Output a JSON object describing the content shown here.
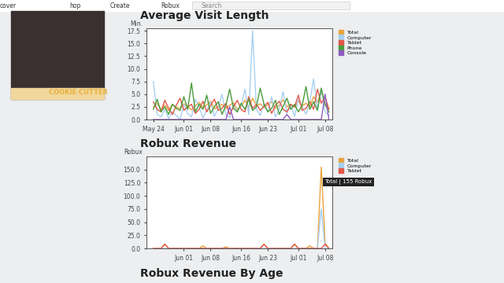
{
  "header": {
    "nav": [
      "cover",
      "hop",
      "Create",
      "Robux"
    ],
    "search": "Search"
  },
  "overlay": {
    "logo": "COOKIE CUTTER"
  },
  "section_title": "Robux Revenue By Age",
  "chart_data": [
    {
      "type": "line",
      "title": "Average Visit Length",
      "y_label": "Min.",
      "categories": [
        "May 24",
        null,
        null,
        null,
        null,
        null,
        null,
        null,
        "Jun 01",
        null,
        null,
        null,
        null,
        null,
        null,
        "Jun 08",
        null,
        null,
        null,
        null,
        null,
        null,
        null,
        "Jun 16",
        null,
        null,
        null,
        null,
        null,
        null,
        "Jun 23",
        null,
        null,
        null,
        null,
        null,
        null,
        null,
        "Jul 01",
        null,
        null,
        null,
        null,
        null,
        null,
        "Jul 08",
        null
      ],
      "series": [
        {
          "name": "Total",
          "color": "#e8a33d",
          "values": [
            2.5,
            3.2,
            2.0,
            2.8,
            1.8,
            3.0,
            2.4,
            2.2,
            3.1,
            2.6,
            1.9,
            2.7,
            3.4,
            2.3,
            2.9,
            3.6,
            2.1,
            2.5,
            3.0,
            2.2,
            2.8,
            3.3,
            2.0,
            2.6,
            3.8,
            2.4,
            4.2,
            2.7,
            3.1,
            2.3,
            2.9,
            3.5,
            2.2,
            2.8,
            3.9,
            2.5,
            3.0,
            2.4,
            3.6,
            2.7,
            3.2,
            2.6,
            4.5,
            3.4,
            5.5,
            3.0,
            2.2
          ]
        },
        {
          "name": "Computer",
          "color": "#a8d0f0",
          "values": [
            7.5,
            1.0,
            0.5,
            2.0,
            0.2,
            1.5,
            0.8,
            0.0,
            3.0,
            1.2,
            0.5,
            4.0,
            2.5,
            0.3,
            1.8,
            3.5,
            0.6,
            2.2,
            5.0,
            1.0,
            0.4,
            3.0,
            1.5,
            2.8,
            6.0,
            1.0,
            17.5,
            2.0,
            0.8,
            3.2,
            1.5,
            4.5,
            0.5,
            2.0,
            5.5,
            1.2,
            3.0,
            0.6,
            4.0,
            2.5,
            1.0,
            3.5,
            8.0,
            2.0,
            6.0,
            1.5,
            0.8
          ]
        },
        {
          "name": "Tablet",
          "color": "#e0584a",
          "values": [
            3.5,
            2.0,
            1.5,
            3.8,
            2.2,
            1.0,
            2.8,
            4.2,
            1.8,
            2.5,
            3.0,
            1.2,
            2.0,
            3.6,
            1.5,
            2.8,
            4.0,
            1.8,
            2.2,
            3.2,
            1.0,
            2.5,
            3.8,
            2.0,
            1.5,
            4.5,
            2.2,
            3.0,
            1.8,
            2.6,
            3.4,
            1.2,
            2.8,
            3.6,
            2.0,
            1.5,
            3.0,
            2.5,
            4.8,
            1.8,
            2.2,
            3.5,
            2.0,
            6.0,
            3.2,
            4.5,
            2.0
          ]
        },
        {
          "name": "Phone",
          "color": "#4a9c3c",
          "values": [
            2.0,
            4.0,
            1.5,
            2.5,
            1.0,
            3.0,
            2.2,
            1.8,
            4.5,
            2.0,
            7.2,
            1.5,
            3.0,
            2.0,
            4.8,
            1.2,
            2.5,
            3.5,
            1.0,
            2.8,
            6.0,
            2.2,
            1.5,
            3.2,
            2.0,
            4.0,
            1.8,
            2.5,
            6.2,
            3.0,
            1.5,
            2.2,
            3.8,
            1.0,
            2.6,
            4.2,
            2.0,
            3.0,
            1.5,
            2.8,
            6.5,
            2.0,
            3.5,
            1.8,
            6.2,
            3.0,
            1.5
          ]
        },
        {
          "name": "Console",
          "color": "#8e5bbf",
          "values": [
            0,
            0,
            0,
            0,
            0,
            0,
            0,
            0,
            0,
            0,
            0,
            0,
            0,
            0,
            0,
            0,
            0,
            0,
            0,
            0,
            2.5,
            0,
            0,
            0,
            0,
            0,
            0,
            0,
            0,
            0,
            0,
            0,
            0,
            0,
            0,
            1.0,
            0,
            0,
            0,
            0,
            0,
            0,
            0,
            0,
            0,
            5.0,
            0
          ]
        }
      ],
      "ylim": [
        0,
        18
      ],
      "yticks": [
        {
          "value": 0,
          "label": "0.0"
        },
        2.5,
        {
          "value": 5,
          "label": "5.0"
        },
        7.5,
        {
          "value": 10,
          "label": "10.0"
        },
        12.5,
        {
          "value": 15,
          "label": "15.0"
        },
        17.5
      ],
      "legend": "upper left",
      "grid": false
    },
    {
      "type": "line",
      "title": "Robux Revenue",
      "y_label": "Robux",
      "categories": [
        null,
        null,
        null,
        null,
        null,
        null,
        null,
        null,
        "Jun 01",
        null,
        null,
        null,
        null,
        null,
        null,
        "Jun 08",
        null,
        null,
        null,
        null,
        null,
        null,
        null,
        "Jun 16",
        null,
        null,
        null,
        null,
        null,
        null,
        "Jun 23",
        null,
        null,
        null,
        null,
        null,
        null,
        null,
        "Jul 01",
        null,
        null,
        null,
        null,
        null,
        null,
        "Jul 08",
        null
      ],
      "series": [
        {
          "name": "Total",
          "color": "#e8a33d",
          "values": [
            0,
            0,
            0,
            8,
            0,
            0,
            0,
            0,
            0,
            0,
            0,
            0,
            0,
            5,
            0,
            0,
            0,
            0,
            0,
            3,
            0,
            0,
            0,
            0,
            0,
            0,
            0,
            0,
            0,
            8,
            0,
            0,
            0,
            0,
            0,
            0,
            0,
            8,
            0,
            0,
            0,
            5,
            0,
            0,
            155,
            10,
            0
          ]
        },
        {
          "name": "Computer",
          "color": "#a8d0f0",
          "values": [
            0,
            0,
            0,
            0,
            0,
            0,
            0,
            0,
            0,
            0,
            0,
            0,
            0,
            0,
            0,
            0,
            0,
            0,
            0,
            0,
            0,
            0,
            0,
            0,
            0,
            0,
            0,
            0,
            0,
            0,
            0,
            0,
            0,
            0,
            0,
            0,
            0,
            0,
            0,
            0,
            0,
            0,
            0,
            0,
            75,
            0,
            0
          ]
        },
        {
          "name": "Tablet",
          "color": "#e0584a",
          "values": [
            0,
            0,
            0,
            8,
            0,
            0,
            0,
            0,
            0,
            0,
            0,
            0,
            0,
            0,
            0,
            0,
            0,
            0,
            0,
            0,
            0,
            0,
            0,
            0,
            0,
            0,
            0,
            0,
            0,
            8,
            0,
            0,
            0,
            0,
            0,
            0,
            0,
            8,
            0,
            0,
            0,
            0,
            0,
            0,
            0,
            8,
            0
          ]
        }
      ],
      "ylim": [
        0,
        175
      ],
      "yticks": [
        {
          "value": 0,
          "label": "0.0"
        },
        {
          "value": 25,
          "label": "25.0"
        },
        {
          "value": 50,
          "label": "50.0"
        },
        {
          "value": 75,
          "label": "75.0"
        },
        {
          "value": 100,
          "label": "100.0"
        },
        {
          "value": 125,
          "label": "125.0"
        },
        {
          "value": 150,
          "label": "150.0"
        }
      ],
      "legend": "upper left",
      "grid": false,
      "annotations": [
        "Total | 155 Robux"
      ]
    }
  ]
}
